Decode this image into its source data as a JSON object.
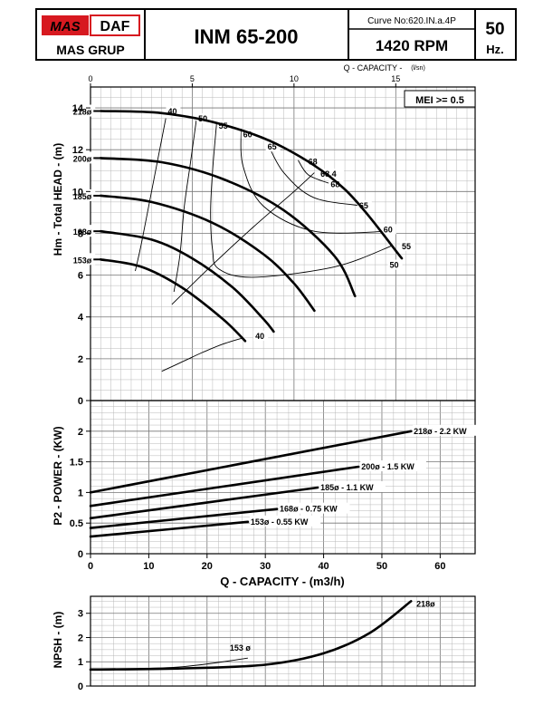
{
  "header": {
    "brand_mas": "MAS",
    "brand_daf": "DAF",
    "brand_group": "MAS GRUP",
    "model": "INM 65-200",
    "curve_no": "Curve No:620.IN.a.4P",
    "rpm": "1420 RPM",
    "freq_value": "50",
    "freq_unit": "Hz."
  },
  "colors": {
    "brand_red": "#d71920",
    "ink": "#000000",
    "grid": "#b8b8b8"
  },
  "chart_data": [
    {
      "type": "line",
      "id": "head",
      "xlabel": "Q - CAPACITY -",
      "xunit": "(l/sn)",
      "ylabel": "Hm - Total HEAD - (m)",
      "xlim": [
        0,
        18.9
      ],
      "ylim": [
        0,
        15
      ],
      "xticks": [
        "0",
        "5",
        "10",
        "15"
      ],
      "yticks": [
        "0",
        "2",
        "4",
        "6",
        "8",
        "10",
        "12",
        "14"
      ],
      "annotation": "MEI >= 0.5",
      "grid": true,
      "series": [
        {
          "name": "218ø",
          "x": [
            0.5,
            3.5,
            6.5,
            9.5,
            12.5,
            15.3
          ],
          "y": [
            13.85,
            13.75,
            13.2,
            12.1,
            10.1,
            6.8
          ]
        },
        {
          "name": "200ø",
          "x": [
            0.5,
            3.5,
            6.5,
            9.5,
            12.0,
            13.0
          ],
          "y": [
            11.6,
            11.4,
            10.6,
            9.1,
            6.9,
            5.0
          ]
        },
        {
          "name": "185ø",
          "x": [
            0.5,
            3.0,
            6.0,
            8.5,
            10.0,
            11.0
          ],
          "y": [
            9.8,
            9.5,
            8.5,
            7.0,
            5.6,
            4.3
          ]
        },
        {
          "name": "168ø",
          "x": [
            0.5,
            3.0,
            5.0,
            7.0,
            8.5,
            9.0
          ],
          "y": [
            8.1,
            7.7,
            6.8,
            5.4,
            3.9,
            3.3
          ]
        },
        {
          "name": "153ø",
          "x": [
            0.5,
            2.5,
            4.5,
            6.5,
            7.6
          ],
          "y": [
            6.75,
            6.4,
            5.4,
            3.9,
            2.85
          ]
        }
      ],
      "efficiency_curves": [
        {
          "label": "40",
          "x": [
            3.7,
            3.3,
            2.9,
            2.5,
            2.2
          ],
          "y": [
            13.5,
            11.5,
            9.5,
            7.5,
            6.2
          ]
        },
        {
          "label": "50",
          "x": [
            5.2,
            4.9,
            4.6,
            4.4,
            4.1
          ],
          "y": [
            13.4,
            11.3,
            9.2,
            7.0,
            5.2
          ]
        },
        {
          "label": "55",
          "x": [
            6.2,
            6.0,
            5.9,
            6.0,
            6.3,
            8.0,
            12.0,
            14.8
          ],
          "y": [
            13.3,
            11.0,
            9.0,
            7.2,
            6.3,
            5.9,
            6.4,
            7.4
          ]
        },
        {
          "label": "60",
          "x": [
            7.4,
            7.5,
            8.5,
            11.0,
            14.7
          ],
          "y": [
            13.0,
            11.2,
            9.3,
            8.1,
            8.1
          ]
        },
        {
          "label": "65",
          "x": [
            8.7,
            9.5,
            11.0,
            13.5
          ],
          "y": [
            12.3,
            10.9,
            9.7,
            9.3
          ]
        },
        {
          "label": "68",
          "x": [
            10.2,
            10.7,
            11.7
          ],
          "y": [
            11.5,
            10.8,
            10.4
          ]
        },
        {
          "label": "40",
          "x": [
            3.5,
            4.5,
            5.5,
            6.5,
            7.5
          ],
          "y": [
            1.4,
            1.85,
            2.3,
            2.7,
            3.0
          ]
        }
      ],
      "curve_labels": [
        {
          "text": "40",
          "x": 3.8,
          "y": 13.7
        },
        {
          "text": "50",
          "x": 5.3,
          "y": 13.35
        },
        {
          "text": "55",
          "x": 6.3,
          "y": 13.0
        },
        {
          "text": "60",
          "x": 7.5,
          "y": 12.6
        },
        {
          "text": "65",
          "x": 8.7,
          "y": 12.0
        },
        {
          "text": "68",
          "x": 10.7,
          "y": 11.3
        },
        {
          "text": "68.4",
          "x": 11.3,
          "y": 10.7
        },
        {
          "text": "68",
          "x": 11.8,
          "y": 10.2
        },
        {
          "text": "65",
          "x": 13.2,
          "y": 9.2
        },
        {
          "text": "60",
          "x": 14.4,
          "y": 8.05
        },
        {
          "text": "55",
          "x": 15.3,
          "y": 7.25
        },
        {
          "text": "50",
          "x": 14.7,
          "y": 6.35
        },
        {
          "text": "40",
          "x": 8.1,
          "y": 2.95
        }
      ],
      "bep_line": {
        "x": [
          4.0,
          6.0,
          8.0,
          10.0,
          11.0
        ],
        "y": [
          4.6,
          6.5,
          8.3,
          10.0,
          10.9
        ]
      }
    },
    {
      "type": "line",
      "id": "power",
      "xlabel": "Q - CAPACITY - (m3/h)",
      "ylabel": "P2 - POWER - (KW)",
      "xlim": [
        0,
        66
      ],
      "ylim": [
        0,
        2.5
      ],
      "xticks": [
        "0",
        "10",
        "20",
        "30",
        "40",
        "50",
        "60"
      ],
      "yticks": [
        "0",
        "0.5",
        "1",
        "1.5",
        "2"
      ],
      "grid": true,
      "series": [
        {
          "name": "218ø - 2.2 KW",
          "x": [
            0,
            55
          ],
          "y": [
            1.0,
            2.0
          ]
        },
        {
          "name": "200ø - 1.5 KW",
          "x": [
            0,
            46
          ],
          "y": [
            0.78,
            1.42
          ]
        },
        {
          "name": "185ø - 1.1 KW",
          "x": [
            0,
            39
          ],
          "y": [
            0.58,
            1.08
          ]
        },
        {
          "name": "168ø - 0.75 KW",
          "x": [
            0,
            32
          ],
          "y": [
            0.42,
            0.73
          ]
        },
        {
          "name": "153ø - 0.55 KW",
          "x": [
            0,
            27
          ],
          "y": [
            0.28,
            0.52
          ]
        }
      ]
    },
    {
      "type": "line",
      "id": "npsh",
      "ylabel": "NPSH - (m)",
      "xlim": [
        0,
        66
      ],
      "ylim": [
        0,
        3.7
      ],
      "yticks": [
        "0",
        "1",
        "2",
        "3"
      ],
      "grid": true,
      "series": [
        {
          "name": "218ø",
          "x": [
            0,
            15,
            30,
            40,
            48,
            55
          ],
          "y": [
            0.68,
            0.72,
            0.88,
            1.35,
            2.2,
            3.5
          ]
        },
        {
          "name": "153 ø",
          "x": [
            0,
            15,
            27
          ],
          "y": [
            0.68,
            0.78,
            1.15
          ]
        }
      ]
    }
  ]
}
